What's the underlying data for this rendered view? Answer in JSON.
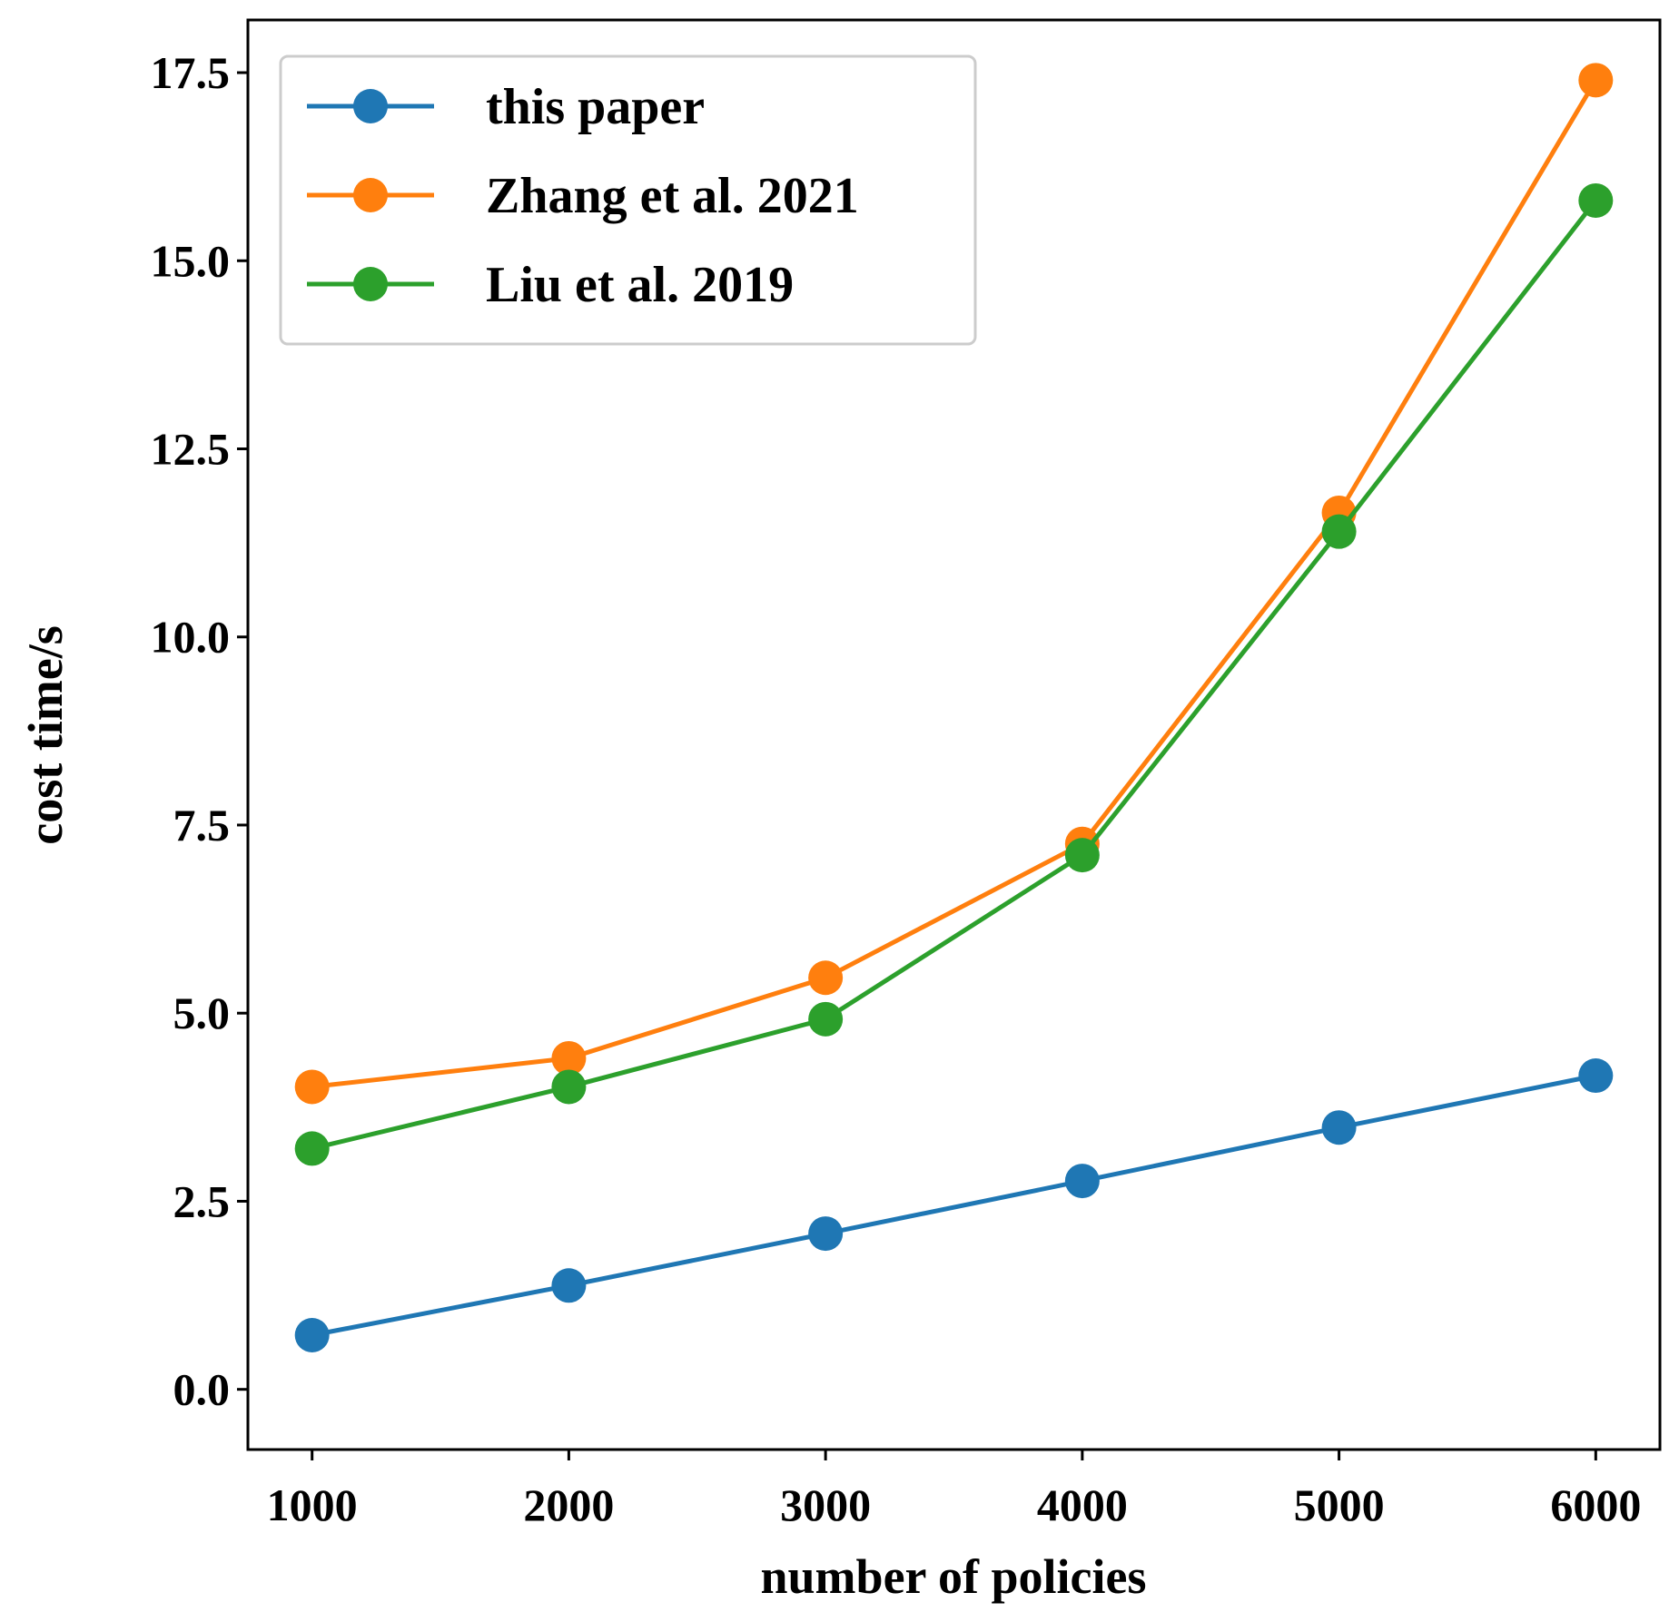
{
  "chart_data": {
    "type": "line",
    "title": "",
    "xlabel": "number of policies",
    "ylabel": "cost time/s",
    "x": [
      1000,
      2000,
      3000,
      4000,
      5000,
      6000
    ],
    "xticks": [
      "1000",
      "2000",
      "3000",
      "4000",
      "5000",
      "6000"
    ],
    "yticks": [
      "0.0",
      "2.5",
      "5.0",
      "7.5",
      "10.0",
      "12.5",
      "15.0",
      "17.5"
    ],
    "ytick_values": [
      0,
      2.5,
      5,
      7.5,
      10,
      12.5,
      15,
      17.5
    ],
    "xlim": [
      750,
      6250
    ],
    "ylim": [
      -0.8,
      18.2
    ],
    "grid": false,
    "legend_position": "top-left",
    "series": [
      {
        "name": "this paper",
        "color": "#1f77b4",
        "values": [
          0.72,
          1.38,
          2.07,
          2.77,
          3.48,
          4.17
        ]
      },
      {
        "name": "Zhang et al. 2021",
        "color": "#ff7f0e",
        "values": [
          4.02,
          4.4,
          5.47,
          7.25,
          11.65,
          17.4
        ]
      },
      {
        "name": "Liu et al. 2019",
        "color": "#2ca02c",
        "values": [
          3.2,
          4.02,
          4.92,
          7.1,
          11.4,
          15.8
        ]
      }
    ]
  }
}
